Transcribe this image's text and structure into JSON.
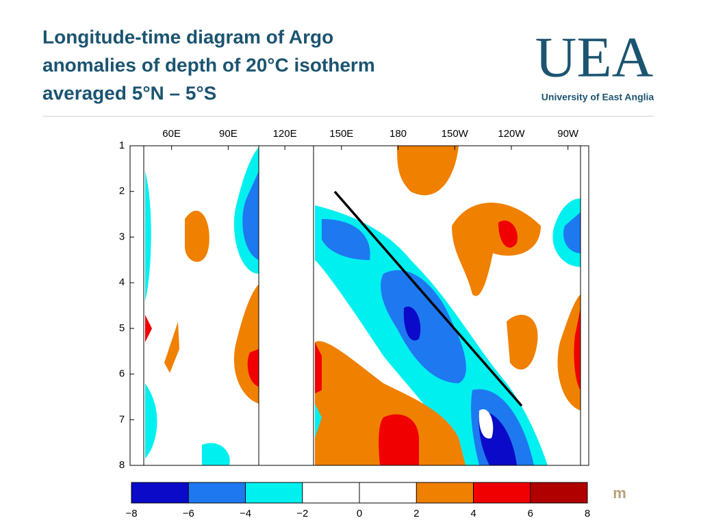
{
  "chart_data": {
    "type": "contour",
    "title": [
      "Longitude-time diagram of Argo",
      "anomalies of depth of 20°C isotherm",
      "averaged 5°N – 5°S"
    ],
    "xlim": [
      38,
      281
    ],
    "xticks": [
      {
        "value": 60,
        "label": "60E"
      },
      {
        "value": 90,
        "label": "90E"
      },
      {
        "value": 120,
        "label": "120E"
      },
      {
        "value": 150,
        "label": "150E"
      },
      180,
      {
        "value": 210,
        "label": "150W"
      },
      {
        "value": 240,
        "label": "120W"
      },
      {
        "value": 270,
        "label": "90W"
      }
    ],
    "ylim": [
      1,
      8
    ],
    "yticks": [
      1,
      2,
      3,
      4,
      5,
      6,
      7,
      8
    ],
    "colorbar": {
      "ticks": [
        {
          "value": -8,
          "label": "−8"
        },
        {
          "value": -6,
          "label": "−6"
        },
        {
          "value": -4,
          "label": "−4"
        },
        {
          "value": -2,
          "label": "−2"
        },
        0,
        2,
        4,
        6,
        8
      ],
      "colors": [
        "#0a0ac8",
        "#1e78f0",
        "#00f0f0",
        "#ffffff",
        "#ffffff",
        "#f08000",
        "#f00000",
        "#b00000"
      ],
      "unit": "m"
    }
  },
  "logo": {
    "mark": "UEA",
    "name": "University of East Anglia"
  }
}
